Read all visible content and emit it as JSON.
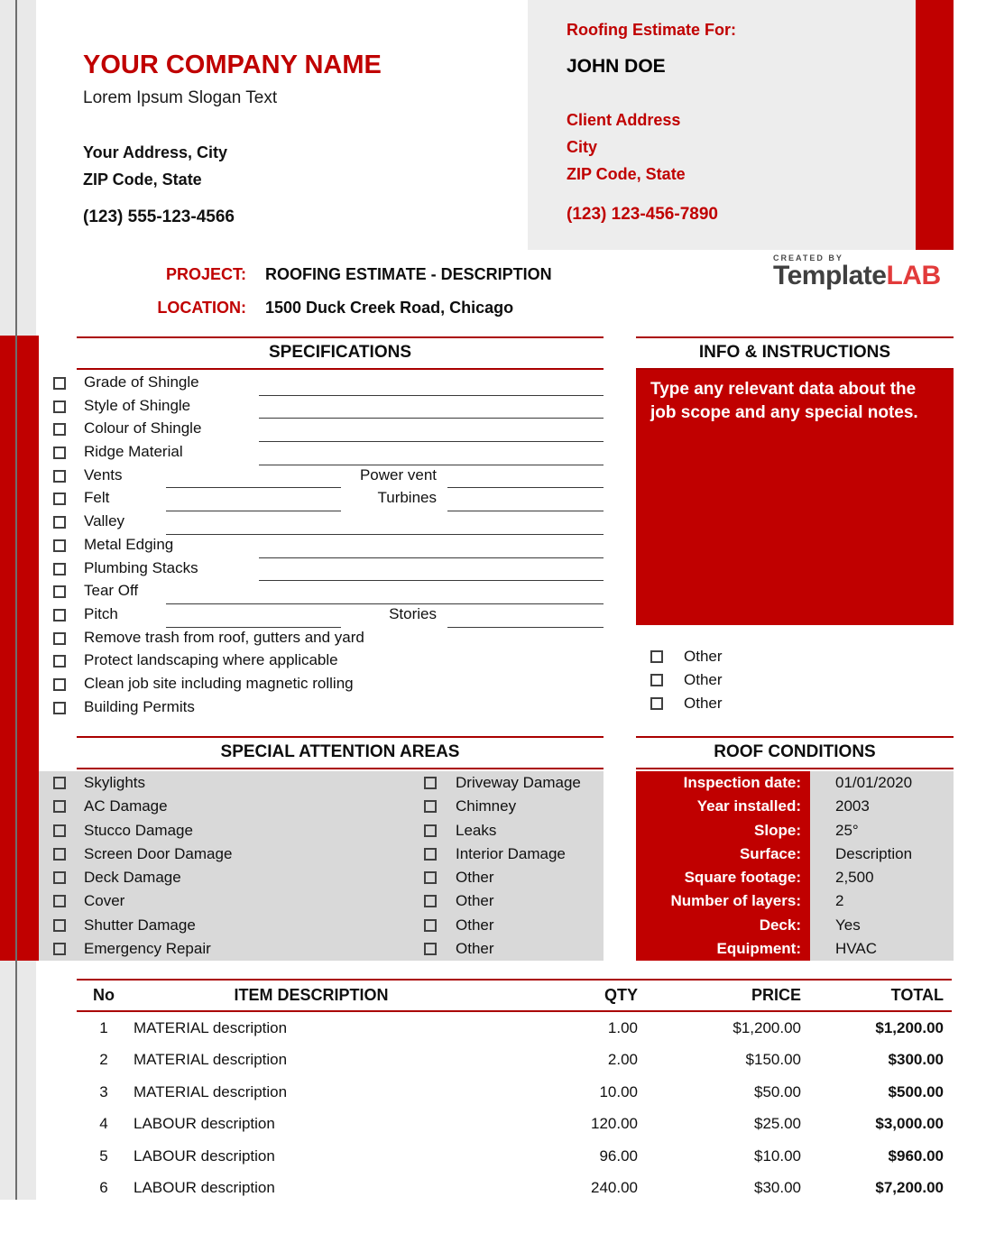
{
  "company": {
    "name": "YOUR COMPANY NAME",
    "slogan": "Lorem Ipsum Slogan Text",
    "address_line1": "Your Address, City",
    "address_line2": "ZIP Code, State",
    "phone": "(123) 555-123-4566"
  },
  "client": {
    "heading": "Roofing Estimate For:",
    "name": "JOHN DOE",
    "address": "Client Address",
    "city": "City",
    "zip": "ZIP Code, State",
    "phone": "(123) 123-456-7890"
  },
  "logo": {
    "created_by": "CREATED BY",
    "brand_dark": "Template",
    "brand_red": "LAB"
  },
  "project": {
    "label": "PROJECT:",
    "value": "ROOFING ESTIMATE - DESCRIPTION"
  },
  "location": {
    "label": "LOCATION:",
    "value": "1500 Duck Creek Road, Chicago"
  },
  "specifications": {
    "title": "SPECIFICATIONS",
    "items": [
      "Grade of Shingle",
      "Style of Shingle",
      "Colour of Shingle",
      "Ridge Material",
      "Vents",
      "Felt",
      "Valley",
      "Metal Edging",
      "Plumbing Stacks",
      "Tear Off",
      "Pitch",
      "Remove trash from roof, gutters and yard",
      "Protect landscaping where applicable",
      "Clean job site including magnetic rolling",
      "Building Permits"
    ],
    "sub_labels": [
      "Power vent",
      "Turbines",
      "Stories"
    ]
  },
  "info": {
    "title": "INFO & INSTRUCTIONS",
    "note": "Type any relevant data about the job scope and any special notes.",
    "others": [
      "Other",
      "Other",
      "Other"
    ]
  },
  "attention": {
    "title": "SPECIAL ATTENTION AREAS",
    "left": [
      "Skylights",
      "AC Damage",
      "Stucco Damage",
      "Screen Door Damage",
      "Deck Damage",
      "Cover",
      "Shutter Damage",
      "Emergency Repair"
    ],
    "right": [
      "Driveway Damage",
      "Chimney",
      "Leaks",
      "Interior Damage",
      "Other",
      "Other",
      "Other",
      "Other"
    ]
  },
  "roof_conditions": {
    "title": "ROOF CONDITIONS",
    "rows": [
      {
        "label": "Inspection date:",
        "value": "01/01/2020"
      },
      {
        "label": "Year installed:",
        "value": "2003"
      },
      {
        "label": "Slope:",
        "value": "25°"
      },
      {
        "label": "Surface:",
        "value": "Description"
      },
      {
        "label": "Square footage:",
        "value": "2,500"
      },
      {
        "label": "Number of layers:",
        "value": "2"
      },
      {
        "label": "Deck:",
        "value": "Yes"
      },
      {
        "label": "Equipment:",
        "value": "HVAC"
      }
    ]
  },
  "items_table": {
    "headers": {
      "no": "No",
      "description": "ITEM DESCRIPTION",
      "qty": "QTY",
      "price": "PRICE",
      "total": "TOTAL"
    },
    "rows": [
      {
        "no": "1",
        "description": "MATERIAL description",
        "qty": "1.00",
        "price": "$1,200.00",
        "total": "$1,200.00"
      },
      {
        "no": "2",
        "description": "MATERIAL description",
        "qty": "2.00",
        "price": "$150.00",
        "total": "$300.00"
      },
      {
        "no": "3",
        "description": "MATERIAL description",
        "qty": "10.00",
        "price": "$50.00",
        "total": "$500.00"
      },
      {
        "no": "4",
        "description": "LABOUR description",
        "qty": "120.00",
        "price": "$25.00",
        "total": "$3,000.00"
      },
      {
        "no": "5",
        "description": "LABOUR description",
        "qty": "96.00",
        "price": "$10.00",
        "total": "$960.00"
      },
      {
        "no": "6",
        "description": "LABOUR description",
        "qty": "240.00",
        "price": "$30.00",
        "total": "$7,200.00"
      }
    ]
  },
  "colors": {
    "accent_red": "#c00000",
    "rule_red": "#aa0000",
    "client_box_gray": "#ededed",
    "panel_gray": "#d9d9d9",
    "margin_strip_gray": "#e9e9e9",
    "logo_dark": "#404040",
    "logo_red": "#e23b3b"
  }
}
